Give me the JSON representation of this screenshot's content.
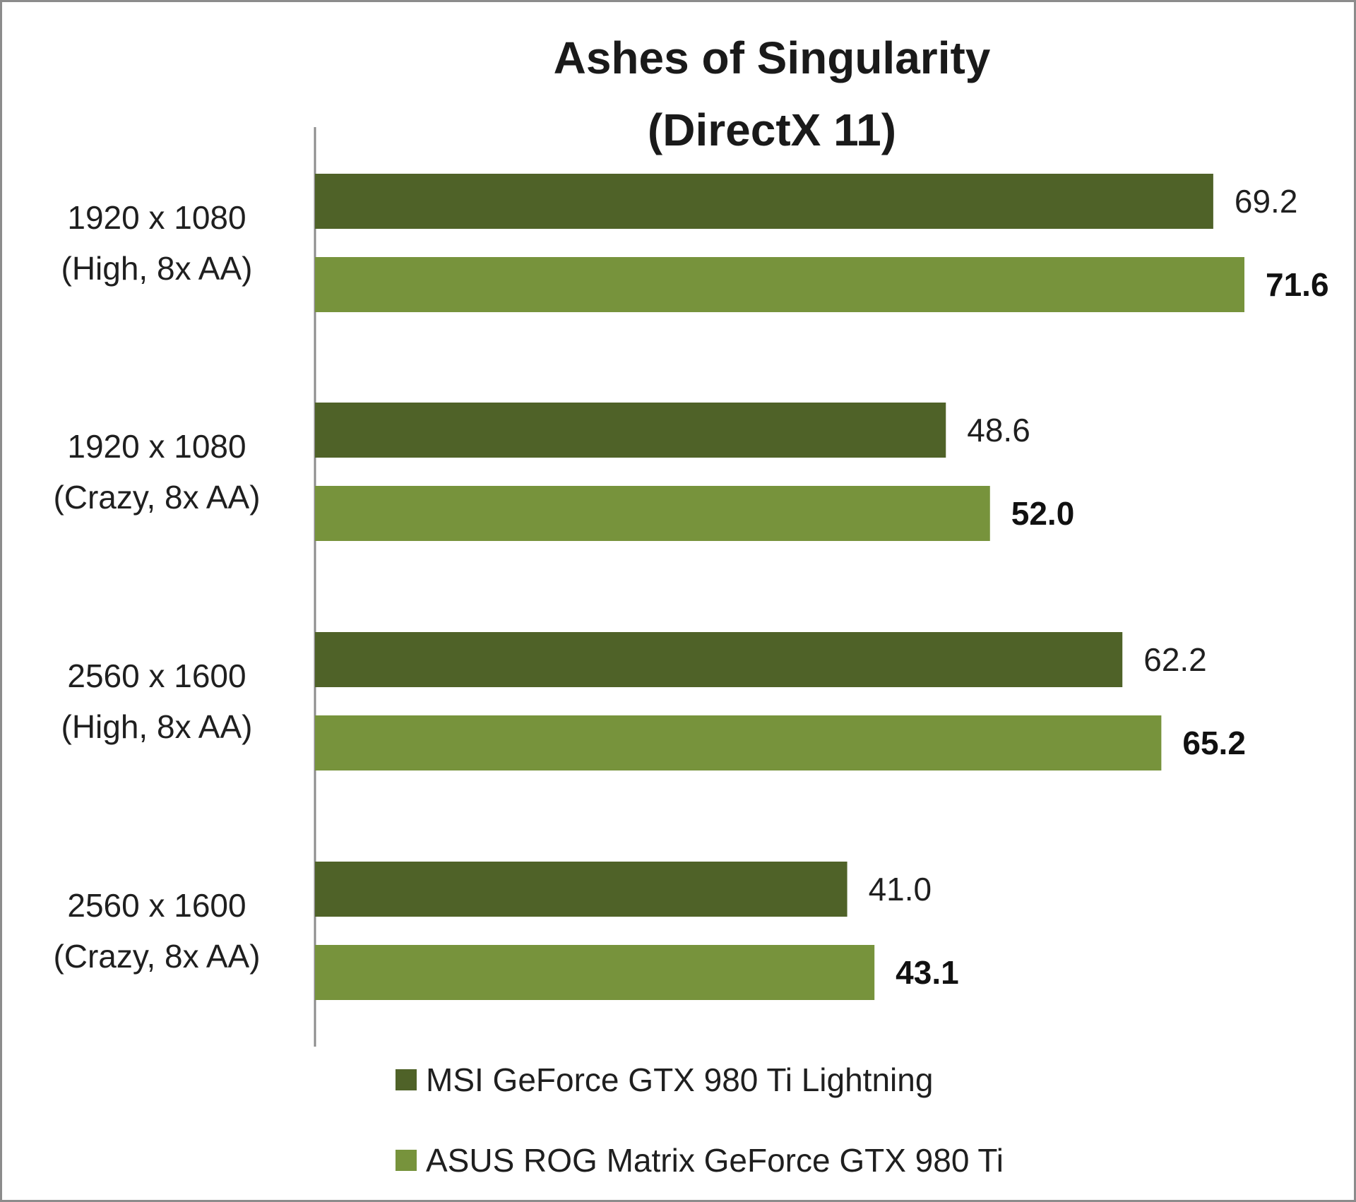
{
  "chart_data": {
    "type": "bar",
    "orientation": "horizontal",
    "title_lines": [
      "Ashes of Singularity",
      "(DirectX 11)"
    ],
    "categories": [
      [
        "1920 x 1080",
        "(High, 8x AA)"
      ],
      [
        "1920 x 1080",
        "(Crazy, 8x AA)"
      ],
      [
        "2560 x 1600",
        "(High, 8x AA)"
      ],
      [
        "2560 x 1600",
        "(Crazy, 8x AA)"
      ]
    ],
    "series": [
      {
        "name": "MSI GeForce GTX 980 Ti Lightning",
        "color": "#4f6228",
        "values": [
          69.2,
          48.6,
          62.2,
          41.0
        ],
        "labels": [
          "69.2",
          "48.6",
          "62.2",
          "41.0"
        ],
        "label_bold": false
      },
      {
        "name": "ASUS ROG Matrix GeForce GTX 980 Ti",
        "color": "#77933c",
        "values": [
          71.6,
          52.0,
          65.2,
          43.1
        ],
        "labels": [
          "71.6",
          "52.0",
          "65.2",
          "43.1"
        ],
        "label_bold": true
      }
    ],
    "xlim": [
      0,
      80
    ],
    "grid": false,
    "axis_visible": false,
    "legend_position": "bottom"
  }
}
